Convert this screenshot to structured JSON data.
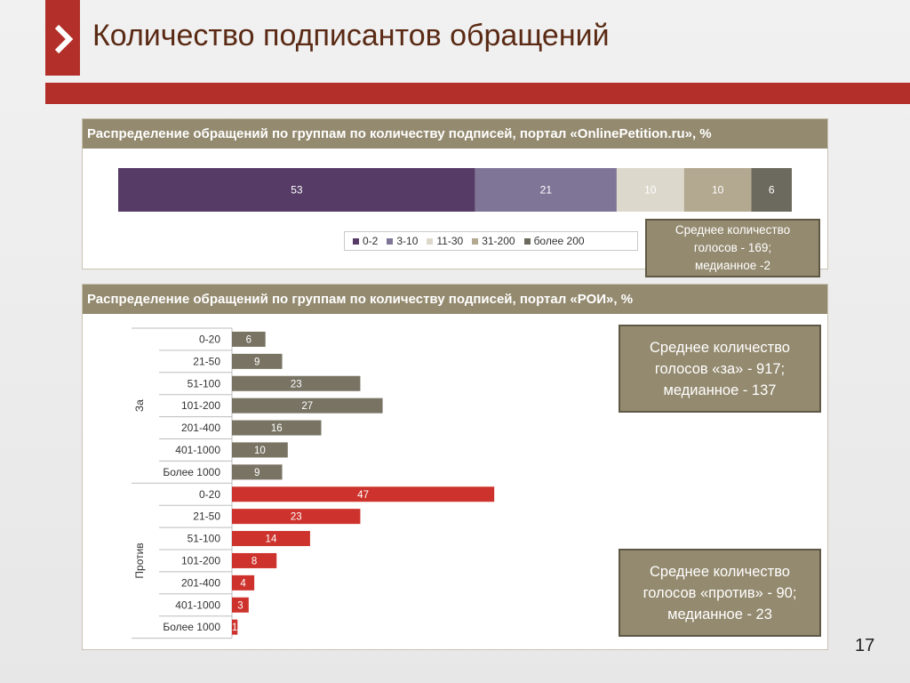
{
  "slide": {
    "title": "Количество подписантов обращений",
    "page_number": "17",
    "accent_color": "#b3302a"
  },
  "panel1": {
    "header": "Распределение обращений по группам по количеству подписей, портал «OnlinePetition.ru», %",
    "info_lines": [
      "Среднее количество",
      "голосов  - 169;",
      "медианное -2"
    ]
  },
  "panel2": {
    "header": "Распределение обращений по группам по количеству подписей, портал «РОИ», %",
    "info_for_lines": [
      "Среднее количество",
      "голосов «за» - 917;",
      "медианное - 137"
    ],
    "info_against_lines": [
      "Среднее количество",
      "голосов «против» - 90;",
      "медианное - 23"
    ]
  },
  "chart_data": [
    {
      "type": "bar",
      "orientation": "horizontal",
      "stacked": true,
      "series": [
        {
          "name": "0-2",
          "values": [
            53
          ],
          "color": "#553b66"
        },
        {
          "name": "3-10",
          "values": [
            21
          ],
          "color": "#7f7596"
        },
        {
          "name": "11-30",
          "values": [
            10
          ],
          "color": "#ddd8cc"
        },
        {
          "name": "31-200",
          "values": [
            10
          ],
          "color": "#b3a890"
        },
        {
          "name": "более 200",
          "values": [
            6
          ],
          "color": "#6c6a5e"
        }
      ],
      "legend_position": "bottom-right"
    },
    {
      "type": "bar",
      "orientation": "horizontal",
      "groups": [
        {
          "name": "За",
          "color": "#787363",
          "categories": [
            "0-20",
            "21-50",
            "51-100",
            "101-200",
            "201-400",
            "401-1000",
            "Более 1000"
          ],
          "values": [
            6,
            9,
            23,
            27,
            16,
            10,
            9
          ]
        },
        {
          "name": "Против",
          "color": "#cd332c",
          "categories": [
            "0-20",
            "21-50",
            "51-100",
            "101-200",
            "201-400",
            "401-1000",
            "Более 1000"
          ],
          "values": [
            47,
            23,
            14,
            8,
            4,
            3,
            1
          ]
        }
      ]
    }
  ]
}
